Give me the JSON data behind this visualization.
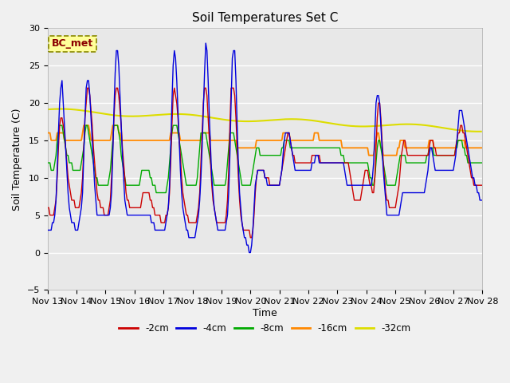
{
  "title": "Soil Temperatures Set C",
  "xlabel": "Time",
  "ylabel": "Soil Temperature (C)",
  "ylim": [
    -5,
    30
  ],
  "annotation": "BC_met",
  "legend_labels": [
    "-2cm",
    "-4cm",
    "-8cm",
    "-16cm",
    "-32cm"
  ],
  "legend_colors": [
    "#cc0000",
    "#0000ee",
    "#00bb00",
    "#ff8800",
    "#dddd00"
  ],
  "xtick_labels": [
    "Nov 13",
    "Nov 14",
    "Nov 15",
    "Nov 16",
    "Nov 17",
    "Nov 18",
    "Nov 19",
    "Nov 20",
    "Nov 21",
    "Nov 22",
    "Nov 23",
    "Nov 24",
    "Nov 25",
    "Nov 26",
    "Nov 27",
    "Nov 28"
  ],
  "background_color": "#f0f0f0",
  "grid_color": "#ffffff"
}
